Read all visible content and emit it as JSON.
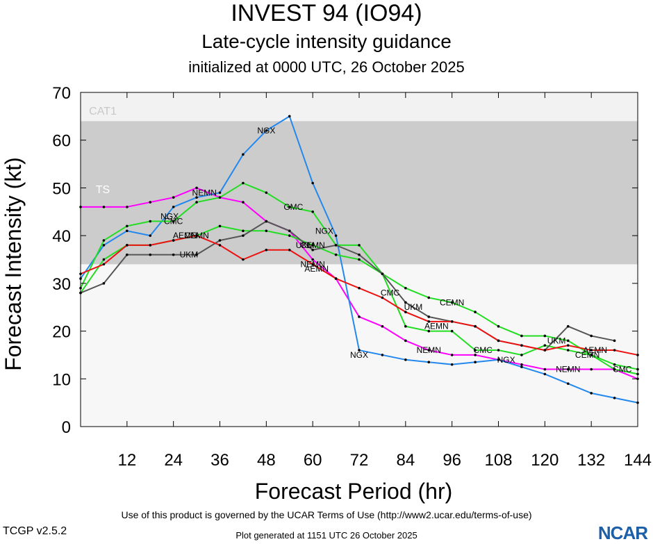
{
  "title": "INVEST 94 (IO94)",
  "subtitle": "Late-cycle intensity guidance",
  "init": "initialized at 0000 UTC, 26 October 2025",
  "footer": {
    "terms": "Use of this product is governed by the UCAR Terms of Use (http://www2.ucar.edu/terms-of-use)",
    "version": "TCGP v2.5.2",
    "generated": "Plot generated at 1151 UTC   26 October 2025",
    "logo": "NCAR"
  },
  "chart_data": {
    "type": "line",
    "xlabel": "Forecast Period (hr)",
    "ylabel": "Forecast Intensity (kt)",
    "xlim": [
      0,
      144
    ],
    "ylim": [
      0,
      70
    ],
    "xticks": [
      12,
      24,
      36,
      48,
      60,
      72,
      84,
      96,
      108,
      120,
      132,
      144
    ],
    "yticks": [
      0,
      10,
      20,
      30,
      40,
      50,
      60,
      70
    ],
    "bands": [
      {
        "label": "TS",
        "from": 34,
        "to": 64,
        "color": "#cccccc"
      },
      {
        "label": "CAT1",
        "from": 64,
        "to": 70,
        "color": "#f2f2f2"
      }
    ],
    "background_color": "#f7f7f7",
    "series": [
      {
        "name": "NEMN",
        "color": "#ff00ff",
        "x": [
          0,
          6,
          12,
          18,
          24,
          30,
          36,
          42,
          48,
          54,
          60,
          66,
          72,
          78,
          84,
          90,
          96,
          102,
          108,
          114,
          120,
          126,
          132,
          138,
          144
        ],
        "y": [
          46,
          46,
          46,
          47,
          48,
          50,
          48,
          47,
          43,
          41,
          35,
          31,
          23,
          21,
          18,
          16,
          15,
          15,
          14,
          13,
          12,
          12,
          12,
          12,
          10
        ]
      },
      {
        "name": "NGX",
        "color": "#2288ee",
        "x": [
          0,
          6,
          12,
          18,
          24,
          30,
          36,
          42,
          48,
          54,
          60,
          66,
          72,
          78,
          84,
          90,
          96,
          102,
          108,
          114,
          120,
          126,
          132,
          138,
          144
        ],
        "y": [
          31,
          38,
          41,
          40,
          46,
          48,
          49,
          57,
          62,
          65,
          51,
          40,
          16,
          15,
          14,
          13.5,
          13,
          13.5,
          14,
          12.5,
          11,
          9,
          7,
          6,
          5
        ]
      },
      {
        "name": "GMC",
        "color": "#22dd22",
        "x": [
          0,
          6,
          12,
          18,
          24,
          30,
          36,
          42,
          48,
          54,
          60,
          66,
          72,
          78,
          84,
          90,
          96,
          102,
          108,
          114,
          120,
          126,
          132,
          138,
          144
        ],
        "y": [
          29,
          39,
          42,
          43,
          43,
          47,
          48,
          51,
          49,
          46,
          45,
          38,
          38,
          32,
          29,
          27,
          26,
          24,
          21,
          19,
          19,
          18,
          15,
          13,
          12
        ]
      },
      {
        "name": "CMC",
        "color": "#22dd22",
        "x": [
          0,
          6,
          12,
          18,
          24,
          30,
          36,
          42,
          48,
          54,
          60,
          66,
          72,
          78,
          84,
          90,
          96,
          102,
          108,
          114,
          120,
          126,
          132,
          138,
          144
        ],
        "y": [
          28,
          35,
          38,
          38,
          39,
          40,
          42,
          41,
          41,
          40,
          38,
          36,
          35,
          32,
          21,
          20,
          20,
          16,
          16,
          15,
          17,
          16,
          15,
          12,
          11
        ]
      },
      {
        "name": "UKM",
        "color": "#555555",
        "x": [
          0,
          6,
          12,
          18,
          24,
          30,
          36,
          42,
          48,
          54,
          60,
          66,
          72,
          78,
          84,
          90,
          96,
          102,
          108,
          114,
          120,
          126,
          132,
          138
        ],
        "y": [
          28,
          30,
          36,
          36,
          36,
          36,
          39,
          40,
          43,
          41,
          37,
          38,
          36,
          32,
          26,
          23,
          22,
          21,
          18,
          17,
          16,
          21,
          19,
          18
        ]
      },
      {
        "name": "AEMN",
        "color": "#ee1111",
        "x": [
          0,
          6,
          12,
          18,
          24,
          30,
          36,
          42,
          48,
          54,
          60,
          66,
          72,
          78,
          84,
          90,
          96,
          102,
          108,
          114,
          120,
          126,
          132,
          138,
          144
        ],
        "y": [
          32,
          34,
          38,
          38,
          39,
          40,
          38,
          35,
          37,
          37,
          34,
          31,
          29,
          27,
          24,
          22,
          22,
          21,
          18,
          17,
          16,
          17,
          16,
          16,
          15
        ]
      }
    ],
    "labels": [
      {
        "text": "NGX",
        "x": 48,
        "y": 62
      },
      {
        "text": "NEMN",
        "x": 32,
        "y": 49
      },
      {
        "text": "NGX",
        "x": 23,
        "y": 44
      },
      {
        "text": "CMC",
        "x": 24,
        "y": 43
      },
      {
        "text": "GMC",
        "x": 55,
        "y": 46
      },
      {
        "text": "NGX",
        "x": 63,
        "y": 41
      },
      {
        "text": "AEMN",
        "x": 27,
        "y": 40
      },
      {
        "text": "CEMN",
        "x": 30,
        "y": 40
      },
      {
        "text": "UKM",
        "x": 28,
        "y": 36
      },
      {
        "text": "CEMN",
        "x": 60,
        "y": 38
      },
      {
        "text": "UKM",
        "x": 58,
        "y": 38
      },
      {
        "text": "NEMN",
        "x": 60,
        "y": 34
      },
      {
        "text": "AEMN",
        "x": 61,
        "y": 33
      },
      {
        "text": "CMC",
        "x": 80,
        "y": 28
      },
      {
        "text": "UKM",
        "x": 86,
        "y": 25
      },
      {
        "text": "CEMN",
        "x": 96,
        "y": 26
      },
      {
        "text": "AEMN",
        "x": 92,
        "y": 21
      },
      {
        "text": "NEMN",
        "x": 90,
        "y": 16
      },
      {
        "text": "NGX",
        "x": 72,
        "y": 15
      },
      {
        "text": "CMC",
        "x": 104,
        "y": 16
      },
      {
        "text": "NGX",
        "x": 110,
        "y": 14
      },
      {
        "text": "UKM",
        "x": 123,
        "y": 18
      },
      {
        "text": "AEMN",
        "x": 133,
        "y": 16
      },
      {
        "text": "CEMN",
        "x": 131,
        "y": 15
      },
      {
        "text": "NEMN",
        "x": 126,
        "y": 12
      },
      {
        "text": "CMC",
        "x": 140,
        "y": 12
      }
    ]
  }
}
